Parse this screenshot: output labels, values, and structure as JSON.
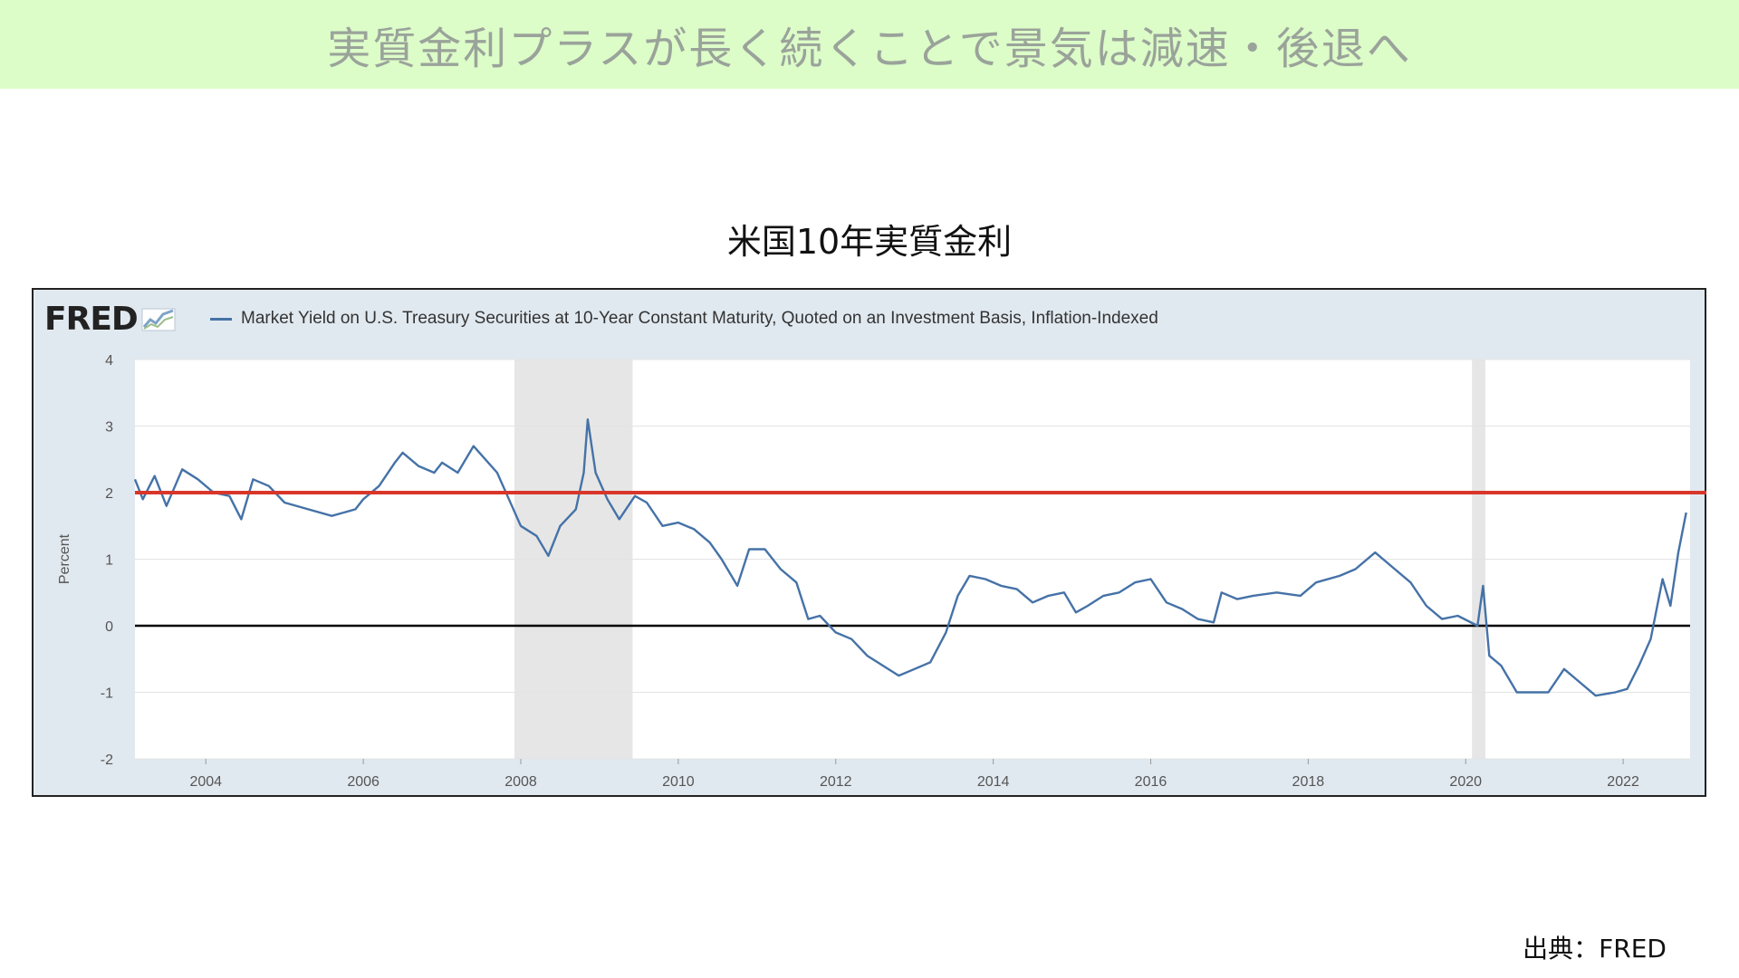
{
  "header": {
    "title": "実質金利プラスが長く続くことで景気は減速・後退へ"
  },
  "chart_title": "米国10年実質金利",
  "fred": {
    "logo_text": "FRED",
    "logo_icon": "chart-line-icon"
  },
  "source": "出典：FRED",
  "colors": {
    "banner_bg": "#dcfcc8",
    "panel_bg": "#e1e9f0",
    "series": "#4572a7",
    "reference_line": "#d9362a",
    "recession": "#e6e6e6",
    "zero_line": "#000000"
  },
  "chart_data": {
    "type": "line",
    "title": "",
    "legend": "Market Yield on U.S. Treasury Securities at 10-Year Constant Maturity, Quoted on an Investment Basis, Inflation-Indexed",
    "legend_position": "top",
    "ylabel": "Percent",
    "xlabel": "",
    "xlim": [
      2003.1,
      2022.85
    ],
    "ylim": [
      -2,
      4
    ],
    "y_ticks": [
      "4",
      "3",
      "2",
      "1",
      "0",
      "-1",
      "-2"
    ],
    "x_ticks": [
      "2004",
      "2006",
      "2008",
      "2010",
      "2012",
      "2014",
      "2016",
      "2018",
      "2020",
      "2022"
    ],
    "grid": "horizontal",
    "recessions": [
      [
        2007.92,
        2009.42
      ],
      [
        2020.08,
        2020.25
      ]
    ],
    "reference_lines": [
      {
        "y": 2,
        "color": "#d9362a"
      },
      {
        "y": 0,
        "color": "#000000"
      }
    ],
    "series": [
      {
        "points": [
          [
            2003.1,
            2.2
          ],
          [
            2003.2,
            1.9
          ],
          [
            2003.35,
            2.25
          ],
          [
            2003.5,
            1.8
          ],
          [
            2003.7,
            2.35
          ],
          [
            2003.9,
            2.2
          ],
          [
            2004.1,
            2.0
          ],
          [
            2004.3,
            1.95
          ],
          [
            2004.45,
            1.6
          ],
          [
            2004.6,
            2.2
          ],
          [
            2004.8,
            2.1
          ],
          [
            2005.0,
            1.85
          ],
          [
            2005.3,
            1.75
          ],
          [
            2005.6,
            1.65
          ],
          [
            2005.9,
            1.75
          ],
          [
            2006.0,
            1.9
          ],
          [
            2006.2,
            2.1
          ],
          [
            2006.4,
            2.45
          ],
          [
            2006.5,
            2.6
          ],
          [
            2006.7,
            2.4
          ],
          [
            2006.9,
            2.3
          ],
          [
            2007.0,
            2.45
          ],
          [
            2007.2,
            2.3
          ],
          [
            2007.4,
            2.7
          ],
          [
            2007.55,
            2.5
          ],
          [
            2007.7,
            2.3
          ],
          [
            2007.85,
            1.9
          ],
          [
            2008.0,
            1.5
          ],
          [
            2008.2,
            1.35
          ],
          [
            2008.35,
            1.05
          ],
          [
            2008.5,
            1.5
          ],
          [
            2008.7,
            1.75
          ],
          [
            2008.8,
            2.3
          ],
          [
            2008.85,
            3.1
          ],
          [
            2008.95,
            2.3
          ],
          [
            2009.1,
            1.9
          ],
          [
            2009.25,
            1.6
          ],
          [
            2009.45,
            1.95
          ],
          [
            2009.6,
            1.85
          ],
          [
            2009.8,
            1.5
          ],
          [
            2010.0,
            1.55
          ],
          [
            2010.2,
            1.45
          ],
          [
            2010.4,
            1.25
          ],
          [
            2010.55,
            1.0
          ],
          [
            2010.75,
            0.6
          ],
          [
            2010.9,
            1.15
          ],
          [
            2011.1,
            1.15
          ],
          [
            2011.3,
            0.85
          ],
          [
            2011.5,
            0.65
          ],
          [
            2011.65,
            0.1
          ],
          [
            2011.8,
            0.15
          ],
          [
            2012.0,
            -0.1
          ],
          [
            2012.2,
            -0.2
          ],
          [
            2012.4,
            -0.45
          ],
          [
            2012.6,
            -0.6
          ],
          [
            2012.8,
            -0.75
          ],
          [
            2013.0,
            -0.65
          ],
          [
            2013.2,
            -0.55
          ],
          [
            2013.4,
            -0.1
          ],
          [
            2013.55,
            0.45
          ],
          [
            2013.7,
            0.75
          ],
          [
            2013.9,
            0.7
          ],
          [
            2014.1,
            0.6
          ],
          [
            2014.3,
            0.55
          ],
          [
            2014.5,
            0.35
          ],
          [
            2014.7,
            0.45
          ],
          [
            2014.9,
            0.5
          ],
          [
            2015.05,
            0.2
          ],
          [
            2015.2,
            0.3
          ],
          [
            2015.4,
            0.45
          ],
          [
            2015.6,
            0.5
          ],
          [
            2015.8,
            0.65
          ],
          [
            2016.0,
            0.7
          ],
          [
            2016.2,
            0.35
          ],
          [
            2016.4,
            0.25
          ],
          [
            2016.6,
            0.1
          ],
          [
            2016.8,
            0.05
          ],
          [
            2016.9,
            0.5
          ],
          [
            2017.1,
            0.4
          ],
          [
            2017.3,
            0.45
          ],
          [
            2017.6,
            0.5
          ],
          [
            2017.9,
            0.45
          ],
          [
            2018.1,
            0.65
          ],
          [
            2018.4,
            0.75
          ],
          [
            2018.6,
            0.85
          ],
          [
            2018.85,
            1.1
          ],
          [
            2019.1,
            0.85
          ],
          [
            2019.3,
            0.65
          ],
          [
            2019.5,
            0.3
          ],
          [
            2019.7,
            0.1
          ],
          [
            2019.9,
            0.15
          ],
          [
            2020.15,
            0.0
          ],
          [
            2020.22,
            0.6
          ],
          [
            2020.3,
            -0.45
          ],
          [
            2020.45,
            -0.6
          ],
          [
            2020.65,
            -1.0
          ],
          [
            2020.85,
            -1.0
          ],
          [
            2021.05,
            -1.0
          ],
          [
            2021.25,
            -0.65
          ],
          [
            2021.45,
            -0.85
          ],
          [
            2021.65,
            -1.05
          ],
          [
            2021.9,
            -1.0
          ],
          [
            2022.05,
            -0.95
          ],
          [
            2022.2,
            -0.6
          ],
          [
            2022.35,
            -0.2
          ],
          [
            2022.5,
            0.7
          ],
          [
            2022.6,
            0.3
          ],
          [
            2022.7,
            1.1
          ],
          [
            2022.8,
            1.7
          ]
        ]
      }
    ]
  }
}
